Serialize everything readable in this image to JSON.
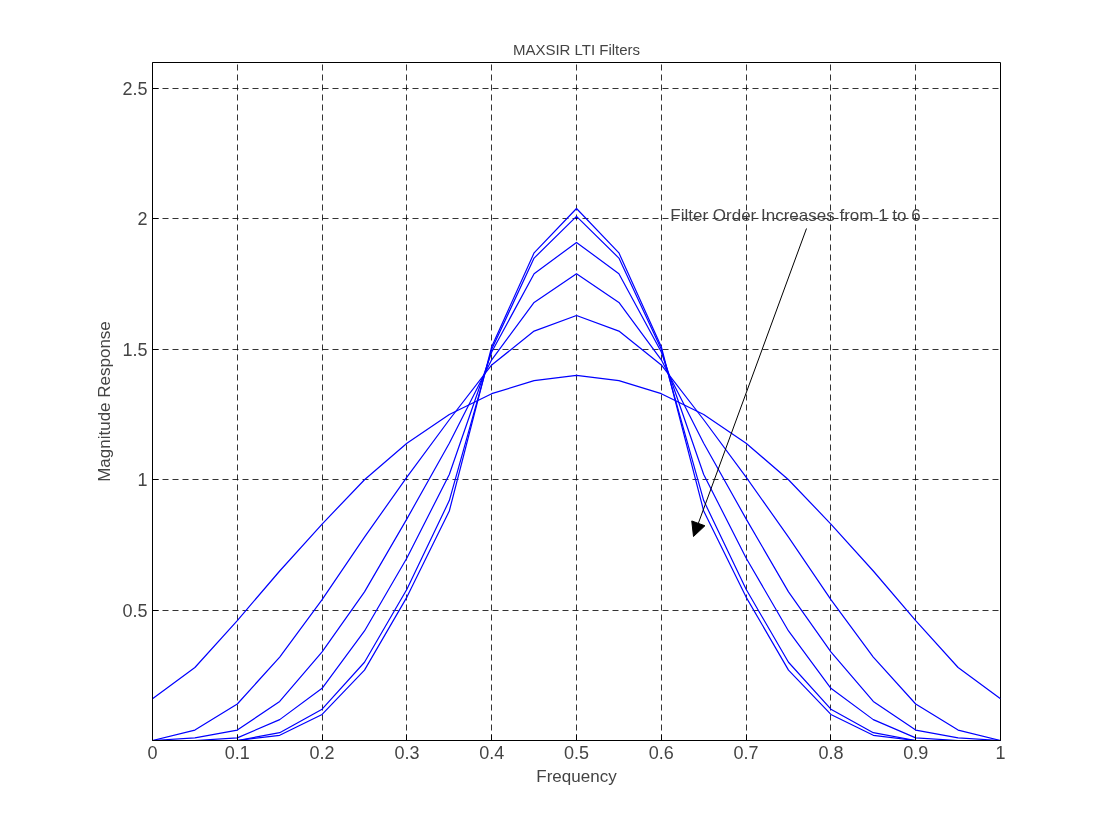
{
  "chart_data": {
    "type": "line",
    "title": "MAXSIR LTI Filters",
    "xlabel": "Frequency",
    "ylabel": "Magnitude Response",
    "x": [
      0,
      0.05,
      0.1,
      0.15,
      0.2,
      0.25,
      0.3,
      0.35,
      0.4,
      0.45,
      0.5,
      0.55,
      0.6,
      0.65,
      0.7,
      0.75,
      0.8,
      0.85,
      0.9,
      0.95,
      1
    ],
    "series": [
      {
        "color": "#0000ff",
        "values": [
          0.16,
          0.28,
          0.46,
          0.65,
          0.83,
          1.0,
          1.14,
          1.25,
          1.33,
          1.38,
          1.4,
          1.38,
          1.33,
          1.25,
          1.14,
          1.0,
          0.83,
          0.65,
          0.46,
          0.28,
          0.16
        ]
      },
      {
        "color": "#0000ff",
        "values": [
          0.0,
          0.04,
          0.14,
          0.32,
          0.54,
          0.78,
          1.01,
          1.23,
          1.44,
          1.57,
          1.63,
          1.57,
          1.44,
          1.23,
          1.01,
          0.78,
          0.54,
          0.32,
          0.14,
          0.04,
          0.0
        ]
      },
      {
        "color": "#0000ff",
        "values": [
          0.0,
          0.01,
          0.04,
          0.15,
          0.34,
          0.57,
          0.85,
          1.14,
          1.46,
          1.68,
          1.79,
          1.68,
          1.46,
          1.14,
          0.85,
          0.57,
          0.34,
          0.15,
          0.04,
          0.01,
          0.0
        ]
      },
      {
        "color": "#0000ff",
        "values": [
          0.0,
          0.0,
          0.01,
          0.08,
          0.2,
          0.42,
          0.7,
          1.02,
          1.49,
          1.79,
          1.91,
          1.79,
          1.49,
          1.02,
          0.7,
          0.42,
          0.2,
          0.08,
          0.01,
          0.0,
          0.0
        ]
      },
      {
        "color": "#0000ff",
        "values": [
          0.0,
          0.0,
          0.0,
          0.03,
          0.12,
          0.3,
          0.58,
          0.92,
          1.5,
          1.85,
          2.01,
          1.85,
          1.5,
          0.92,
          0.58,
          0.3,
          0.12,
          0.03,
          0.0,
          0.0,
          0.0
        ]
      },
      {
        "color": "#0000ff",
        "values": [
          0.0,
          0.0,
          0.0,
          0.02,
          0.1,
          0.27,
          0.55,
          0.88,
          1.51,
          1.87,
          2.04,
          1.87,
          1.51,
          0.88,
          0.55,
          0.27,
          0.1,
          0.02,
          0.0,
          0.0,
          0.0
        ]
      }
    ],
    "xlim": [
      0,
      1
    ],
    "ylim": [
      0,
      2.6
    ],
    "xticks": [
      0,
      0.1,
      0.2,
      0.3,
      0.4,
      0.5,
      0.6,
      0.7,
      0.8,
      0.9,
      1
    ],
    "yticks": [
      0.5,
      1,
      1.5,
      2,
      2.5
    ],
    "grid": true,
    "marker": "none",
    "line_style": "solid",
    "annotations": [
      "Filter Order Increases from 1 to 6"
    ]
  }
}
